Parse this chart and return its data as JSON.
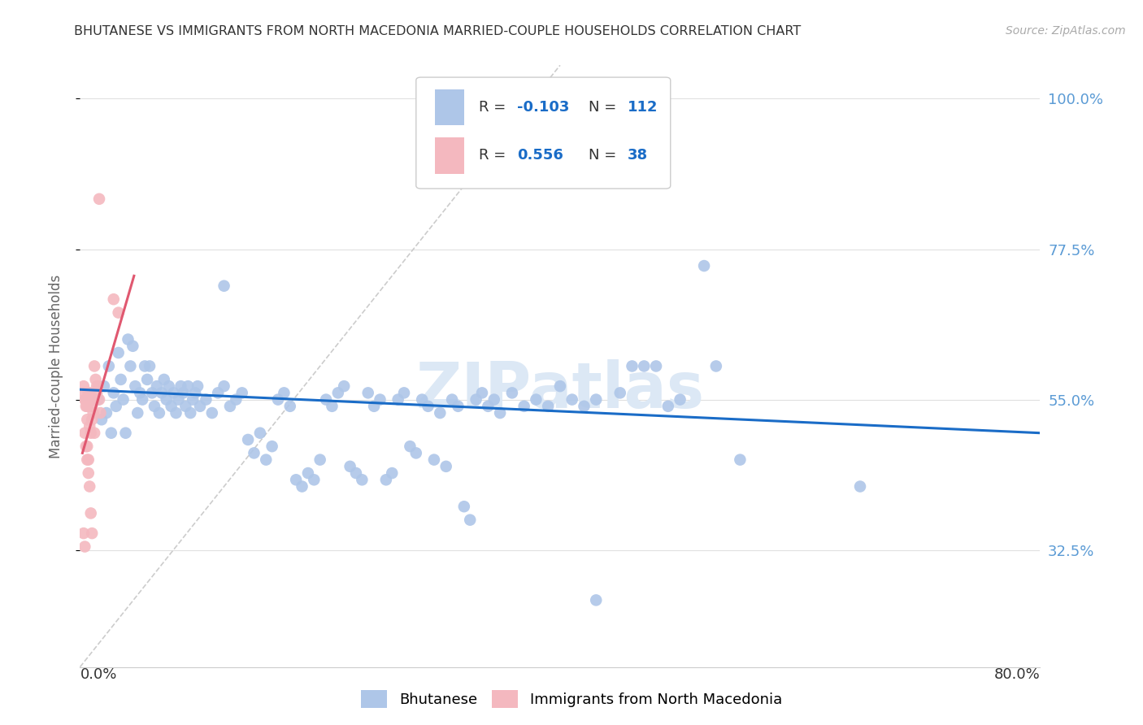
{
  "title": "BHUTANESE VS IMMIGRANTS FROM NORTH MACEDONIA MARRIED-COUPLE HOUSEHOLDS CORRELATION CHART",
  "source": "Source: ZipAtlas.com",
  "ylabel": "Married-couple Households",
  "ytick_labels": [
    "100.0%",
    "77.5%",
    "55.0%",
    "32.5%"
  ],
  "ytick_values": [
    1.0,
    0.775,
    0.55,
    0.325
  ],
  "xlim": [
    0.0,
    0.8
  ],
  "ylim": [
    0.15,
    1.05
  ],
  "watermark": "ZIPatlas",
  "bhutanese_R": -0.103,
  "bhutanese_N": 112,
  "macedonia_R": 0.556,
  "macedonia_N": 38,
  "bhutanese_scatter": [
    [
      0.015,
      0.55
    ],
    [
      0.018,
      0.52
    ],
    [
      0.02,
      0.57
    ],
    [
      0.022,
      0.53
    ],
    [
      0.024,
      0.6
    ],
    [
      0.026,
      0.5
    ],
    [
      0.028,
      0.56
    ],
    [
      0.03,
      0.54
    ],
    [
      0.032,
      0.62
    ],
    [
      0.034,
      0.58
    ],
    [
      0.036,
      0.55
    ],
    [
      0.038,
      0.5
    ],
    [
      0.04,
      0.64
    ],
    [
      0.042,
      0.6
    ],
    [
      0.044,
      0.63
    ],
    [
      0.046,
      0.57
    ],
    [
      0.048,
      0.53
    ],
    [
      0.05,
      0.56
    ],
    [
      0.052,
      0.55
    ],
    [
      0.054,
      0.6
    ],
    [
      0.056,
      0.58
    ],
    [
      0.058,
      0.6
    ],
    [
      0.06,
      0.56
    ],
    [
      0.062,
      0.54
    ],
    [
      0.064,
      0.57
    ],
    [
      0.066,
      0.53
    ],
    [
      0.068,
      0.56
    ],
    [
      0.07,
      0.58
    ],
    [
      0.072,
      0.55
    ],
    [
      0.074,
      0.57
    ],
    [
      0.076,
      0.54
    ],
    [
      0.078,
      0.56
    ],
    [
      0.08,
      0.53
    ],
    [
      0.082,
      0.55
    ],
    [
      0.084,
      0.57
    ],
    [
      0.086,
      0.56
    ],
    [
      0.088,
      0.54
    ],
    [
      0.09,
      0.57
    ],
    [
      0.092,
      0.53
    ],
    [
      0.094,
      0.55
    ],
    [
      0.096,
      0.56
    ],
    [
      0.098,
      0.57
    ],
    [
      0.1,
      0.54
    ],
    [
      0.105,
      0.55
    ],
    [
      0.11,
      0.53
    ],
    [
      0.115,
      0.56
    ],
    [
      0.12,
      0.57
    ],
    [
      0.125,
      0.54
    ],
    [
      0.13,
      0.55
    ],
    [
      0.135,
      0.56
    ],
    [
      0.14,
      0.49
    ],
    [
      0.145,
      0.47
    ],
    [
      0.15,
      0.5
    ],
    [
      0.155,
      0.46
    ],
    [
      0.16,
      0.48
    ],
    [
      0.165,
      0.55
    ],
    [
      0.17,
      0.56
    ],
    [
      0.175,
      0.54
    ],
    [
      0.18,
      0.43
    ],
    [
      0.185,
      0.42
    ],
    [
      0.19,
      0.44
    ],
    [
      0.195,
      0.43
    ],
    [
      0.2,
      0.46
    ],
    [
      0.205,
      0.55
    ],
    [
      0.21,
      0.54
    ],
    [
      0.215,
      0.56
    ],
    [
      0.22,
      0.57
    ],
    [
      0.225,
      0.45
    ],
    [
      0.23,
      0.44
    ],
    [
      0.235,
      0.43
    ],
    [
      0.24,
      0.56
    ],
    [
      0.245,
      0.54
    ],
    [
      0.25,
      0.55
    ],
    [
      0.255,
      0.43
    ],
    [
      0.26,
      0.44
    ],
    [
      0.265,
      0.55
    ],
    [
      0.27,
      0.56
    ],
    [
      0.275,
      0.48
    ],
    [
      0.28,
      0.47
    ],
    [
      0.285,
      0.55
    ],
    [
      0.29,
      0.54
    ],
    [
      0.295,
      0.46
    ],
    [
      0.3,
      0.53
    ],
    [
      0.305,
      0.45
    ],
    [
      0.31,
      0.55
    ],
    [
      0.315,
      0.54
    ],
    [
      0.32,
      0.39
    ],
    [
      0.325,
      0.37
    ],
    [
      0.33,
      0.55
    ],
    [
      0.335,
      0.56
    ],
    [
      0.34,
      0.54
    ],
    [
      0.345,
      0.55
    ],
    [
      0.35,
      0.53
    ],
    [
      0.36,
      0.56
    ],
    [
      0.37,
      0.54
    ],
    [
      0.38,
      0.55
    ],
    [
      0.39,
      0.54
    ],
    [
      0.4,
      0.57
    ],
    [
      0.41,
      0.55
    ],
    [
      0.42,
      0.54
    ],
    [
      0.43,
      0.55
    ],
    [
      0.45,
      0.56
    ],
    [
      0.46,
      0.6
    ],
    [
      0.47,
      0.6
    ],
    [
      0.48,
      0.6
    ],
    [
      0.49,
      0.54
    ],
    [
      0.5,
      0.55
    ],
    [
      0.52,
      0.75
    ],
    [
      0.53,
      0.6
    ],
    [
      0.55,
      0.46
    ],
    [
      0.65,
      0.42
    ],
    [
      0.12,
      0.72
    ],
    [
      0.43,
      0.25
    ]
  ],
  "bhutanese_line_x": [
    0.0,
    0.8
  ],
  "bhutanese_line_y": [
    0.565,
    0.5
  ],
  "macedonia_scatter": [
    [
      0.004,
      0.55
    ],
    [
      0.006,
      0.52
    ],
    [
      0.007,
      0.56
    ],
    [
      0.008,
      0.51
    ],
    [
      0.01,
      0.54
    ],
    [
      0.011,
      0.53
    ],
    [
      0.012,
      0.5
    ],
    [
      0.004,
      0.5
    ],
    [
      0.005,
      0.48
    ],
    [
      0.006,
      0.46
    ],
    [
      0.007,
      0.44
    ],
    [
      0.008,
      0.42
    ],
    [
      0.009,
      0.38
    ],
    [
      0.01,
      0.35
    ],
    [
      0.011,
      0.55
    ],
    [
      0.012,
      0.6
    ],
    [
      0.013,
      0.58
    ],
    [
      0.014,
      0.56
    ],
    [
      0.015,
      0.57
    ],
    [
      0.016,
      0.55
    ],
    [
      0.017,
      0.53
    ],
    [
      0.004,
      0.56
    ],
    [
      0.005,
      0.54
    ],
    [
      0.003,
      0.35
    ],
    [
      0.004,
      0.33
    ],
    [
      0.006,
      0.48
    ],
    [
      0.007,
      0.46
    ],
    [
      0.009,
      0.5
    ],
    [
      0.01,
      0.52
    ],
    [
      0.012,
      0.55
    ],
    [
      0.014,
      0.57
    ],
    [
      0.016,
      0.85
    ],
    [
      0.028,
      0.7
    ],
    [
      0.032,
      0.68
    ],
    [
      0.003,
      0.57
    ],
    [
      0.005,
      0.55
    ],
    [
      0.006,
      0.54
    ],
    [
      0.008,
      0.56
    ]
  ],
  "macedonia_line_x": [
    0.002,
    0.045
  ],
  "macedonia_line_y": [
    0.47,
    0.735
  ],
  "diagonal_line_x": [
    0.0,
    0.4
  ],
  "diagonal_line_y": [
    0.15,
    1.05
  ],
  "blue_scatter_color": "#aec6e8",
  "pink_scatter_color": "#f4b8bf",
  "blue_line_color": "#1a6cc7",
  "pink_line_color": "#e05870",
  "diagonal_color": "#cccccc",
  "background_color": "#ffffff",
  "grid_color": "#e0e0e0",
  "title_color": "#333333",
  "right_axis_color": "#5b9bd5",
  "watermark_color": "#dce8f5",
  "watermark_fontsize": 56,
  "legend_r_color": "#1a6cc7",
  "legend_n_color": "#1a6cc7"
}
